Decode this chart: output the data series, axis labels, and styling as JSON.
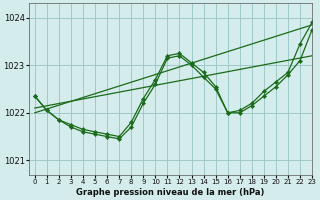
{
  "background_color": "#d4ecec",
  "grid_color": "#9fc8c8",
  "line_color": "#1a6b1a",
  "title": "Graphe pression niveau de la mer (hPa)",
  "xlim": [
    -0.5,
    23
  ],
  "ylim": [
    1020.7,
    1024.3
  ],
  "yticks": [
    1021,
    1022,
    1023,
    1024
  ],
  "xticks": [
    0,
    1,
    2,
    3,
    4,
    5,
    6,
    7,
    8,
    9,
    10,
    11,
    12,
    13,
    14,
    15,
    16,
    17,
    18,
    19,
    20,
    21,
    22,
    23
  ],
  "series": [
    {
      "x": [
        0,
        23
      ],
      "y": [
        1022.0,
        1023.85
      ],
      "has_markers": false
    },
    {
      "x": [
        0,
        23
      ],
      "y": [
        1022.1,
        1023.2
      ],
      "has_markers": false
    },
    {
      "x": [
        0,
        1,
        2,
        3,
        4,
        5,
        6,
        7,
        8,
        9,
        10,
        11,
        12,
        13,
        14,
        15,
        16,
        17,
        18,
        19,
        20,
        21,
        22,
        23
      ],
      "y": [
        1022.35,
        1022.05,
        1021.85,
        1021.75,
        1021.65,
        1021.6,
        1021.55,
        1021.5,
        1021.8,
        1022.3,
        1022.7,
        1023.2,
        1023.25,
        1023.05,
        1022.85,
        1022.55,
        1022.0,
        1022.05,
        1022.2,
        1022.45,
        1022.65,
        1022.85,
        1023.45,
        1023.9
      ],
      "has_markers": true
    },
    {
      "x": [
        0,
        1,
        2,
        3,
        4,
        5,
        6,
        7,
        8,
        9,
        10,
        11,
        12,
        13,
        14,
        15,
        16,
        17,
        18,
        19,
        20,
        21,
        22,
        23
      ],
      "y": [
        1022.35,
        1022.05,
        1021.85,
        1021.7,
        1021.6,
        1021.55,
        1021.5,
        1021.45,
        1021.7,
        1022.2,
        1022.6,
        1023.15,
        1023.2,
        1023.0,
        1022.75,
        1022.5,
        1022.0,
        1022.0,
        1022.15,
        1022.35,
        1022.55,
        1022.8,
        1023.1,
        1023.75
      ],
      "has_markers": true
    }
  ]
}
